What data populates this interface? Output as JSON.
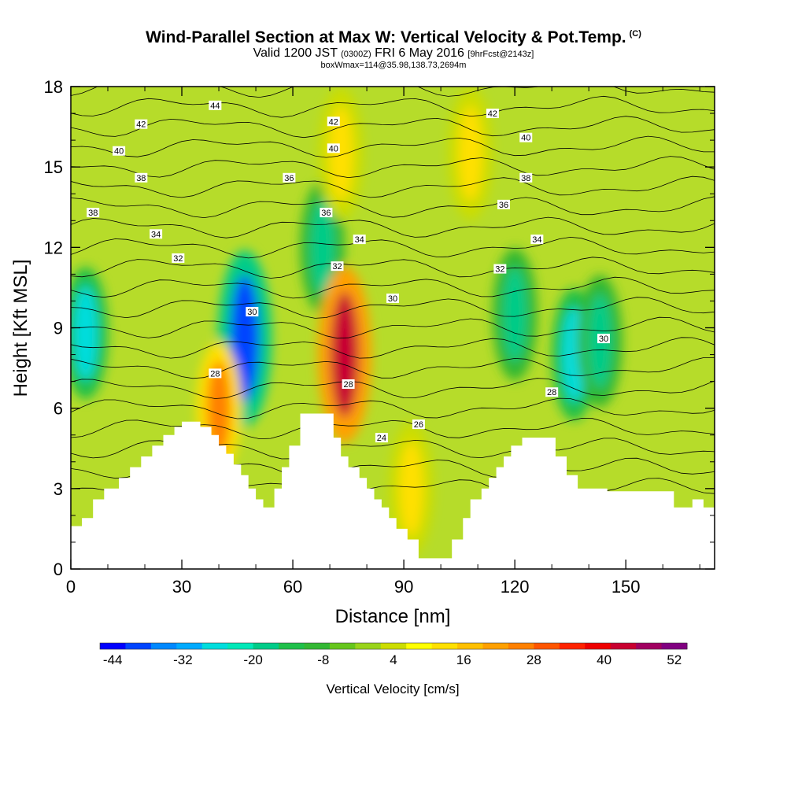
{
  "header": {
    "title": "Wind-Parallel Section at Max W: Vertical Velocity & Pot.Temp.",
    "title_mark": "(C)",
    "valid_prefix": "Valid 1200 JST",
    "valid_utc": "(0300Z)",
    "valid_date": "FRI 6 May 2016",
    "valid_fcst": "[9hrFcst@2143z]",
    "box_info": "boxWmax=114@35.98,138.73,2694m"
  },
  "chart_data": {
    "type": "heatmap",
    "title": "Wind-Parallel Section at Max W: Vertical Velocity & Pot.Temp.",
    "xlabel": "Distance [nm]",
    "ylabel": "Height [Kft MSL]",
    "xlim": [
      0,
      174
    ],
    "ylim": [
      0,
      18
    ],
    "xticks": [
      0,
      30,
      60,
      90,
      120,
      150
    ],
    "yticks": [
      0,
      3,
      6,
      9,
      12,
      15,
      18
    ],
    "colorbar": {
      "title": "Vertical Velocity [cm/s]",
      "labels": [
        -44,
        -32,
        -20,
        -8,
        4,
        16,
        28,
        40,
        52
      ],
      "colors": [
        "#0000ff",
        "#0044ff",
        "#0088ff",
        "#00aaff",
        "#00dddd",
        "#00e8b8",
        "#00cc88",
        "#1fc04a",
        "#33b833",
        "#66c61c",
        "#99d41a",
        "#ccdd00",
        "#ffff00",
        "#ffe000",
        "#ffc000",
        "#ffa000",
        "#ff8000",
        "#ff5500",
        "#ff2200",
        "#ee0000",
        "#c80030",
        "#a00060",
        "#800080"
      ]
    },
    "velocity_features": [
      {
        "x": 4,
        "y": 8.8,
        "value": -32
      },
      {
        "x": 47,
        "y": 8.6,
        "value": -44
      },
      {
        "x": 68,
        "y": 12.0,
        "value": -20
      },
      {
        "x": 74,
        "y": 8.0,
        "value": 52
      },
      {
        "x": 73,
        "y": 15.5,
        "value": 16
      },
      {
        "x": 40,
        "y": 6.0,
        "value": 28
      },
      {
        "x": 120,
        "y": 9.5,
        "value": -20
      },
      {
        "x": 136,
        "y": 8.0,
        "value": -32
      },
      {
        "x": 143,
        "y": 8.5,
        "value": -20
      },
      {
        "x": 92,
        "y": 3.0,
        "value": 16
      },
      {
        "x": 108,
        "y": 15.5,
        "value": 16
      }
    ],
    "theta_contour_labels": [
      {
        "text": "44",
        "x": 39,
        "y": 17.3
      },
      {
        "text": "42",
        "x": 19,
        "y": 16.6
      },
      {
        "text": "40",
        "x": 13,
        "y": 15.6
      },
      {
        "text": "38",
        "x": 19,
        "y": 14.6
      },
      {
        "text": "38",
        "x": 6,
        "y": 13.3
      },
      {
        "text": "34",
        "x": 23,
        "y": 12.5
      },
      {
        "text": "32",
        "x": 29,
        "y": 11.6
      },
      {
        "text": "42",
        "x": 71,
        "y": 16.7
      },
      {
        "text": "40",
        "x": 71,
        "y": 15.7
      },
      {
        "text": "36",
        "x": 59,
        "y": 14.6
      },
      {
        "text": "36",
        "x": 69,
        "y": 13.3
      },
      {
        "text": "34",
        "x": 78,
        "y": 12.3
      },
      {
        "text": "32",
        "x": 72,
        "y": 11.3
      },
      {
        "text": "30",
        "x": 49,
        "y": 9.6
      },
      {
        "text": "28",
        "x": 39,
        "y": 7.3
      },
      {
        "text": "28",
        "x": 75,
        "y": 6.9
      },
      {
        "text": "26",
        "x": 94,
        "y": 5.4
      },
      {
        "text": "24",
        "x": 84,
        "y": 4.9
      },
      {
        "text": "30",
        "x": 87,
        "y": 10.1
      },
      {
        "text": "42",
        "x": 114,
        "y": 17.0
      },
      {
        "text": "40",
        "x": 123,
        "y": 16.1
      },
      {
        "text": "38",
        "x": 123,
        "y": 14.6
      },
      {
        "text": "36",
        "x": 117,
        "y": 13.6
      },
      {
        "text": "34",
        "x": 126,
        "y": 12.3
      },
      {
        "text": "32",
        "x": 116,
        "y": 11.2
      },
      {
        "text": "28",
        "x": 130,
        "y": 6.6
      },
      {
        "text": "30",
        "x": 144,
        "y": 8.6
      }
    ],
    "terrain": [
      [
        0,
        1.6
      ],
      [
        3,
        1.6
      ],
      [
        3,
        1.9
      ],
      [
        6,
        1.9
      ],
      [
        6,
        2.6
      ],
      [
        9,
        2.6
      ],
      [
        9,
        3.0
      ],
      [
        13,
        3.0
      ],
      [
        13,
        3.4
      ],
      [
        16,
        3.4
      ],
      [
        16,
        3.8
      ],
      [
        19,
        3.8
      ],
      [
        19,
        4.2
      ],
      [
        22,
        4.2
      ],
      [
        22,
        4.6
      ],
      [
        25,
        4.6
      ],
      [
        25,
        5.0
      ],
      [
        28,
        5.0
      ],
      [
        28,
        5.3
      ],
      [
        30,
        5.3
      ],
      [
        30,
        5.5
      ],
      [
        35,
        5.5
      ],
      [
        35,
        5.3
      ],
      [
        38,
        5.3
      ],
      [
        38,
        5.0
      ],
      [
        40,
        5.0
      ],
      [
        40,
        4.6
      ],
      [
        42,
        4.6
      ],
      [
        42,
        4.3
      ],
      [
        44,
        4.3
      ],
      [
        44,
        3.9
      ],
      [
        46,
        3.9
      ],
      [
        46,
        3.5
      ],
      [
        48,
        3.5
      ],
      [
        48,
        3.0
      ],
      [
        50,
        3.0
      ],
      [
        50,
        2.6
      ],
      [
        52,
        2.6
      ],
      [
        52,
        2.3
      ],
      [
        55,
        2.3
      ],
      [
        55,
        3.0
      ],
      [
        57,
        3.0
      ],
      [
        57,
        3.8
      ],
      [
        59,
        3.8
      ],
      [
        59,
        4.6
      ],
      [
        62,
        4.6
      ],
      [
        62,
        5.8
      ],
      [
        71,
        5.8
      ],
      [
        71,
        4.9
      ],
      [
        73,
        4.9
      ],
      [
        73,
        4.2
      ],
      [
        75,
        4.2
      ],
      [
        75,
        3.8
      ],
      [
        78,
        3.8
      ],
      [
        78,
        3.4
      ],
      [
        80,
        3.4
      ],
      [
        80,
        3.0
      ],
      [
        82,
        3.0
      ],
      [
        82,
        2.6
      ],
      [
        84,
        2.6
      ],
      [
        84,
        2.3
      ],
      [
        86,
        2.3
      ],
      [
        86,
        1.9
      ],
      [
        88,
        1.9
      ],
      [
        88,
        1.5
      ],
      [
        91,
        1.5
      ],
      [
        91,
        1.1
      ],
      [
        94,
        1.1
      ],
      [
        94,
        0.4
      ],
      [
        103,
        0.4
      ],
      [
        103,
        1.1
      ],
      [
        106,
        1.1
      ],
      [
        106,
        1.9
      ],
      [
        108,
        1.9
      ],
      [
        108,
        2.6
      ],
      [
        111,
        2.6
      ],
      [
        111,
        3.0
      ],
      [
        113,
        3.0
      ],
      [
        113,
        3.4
      ],
      [
        115,
        3.4
      ],
      [
        115,
        3.8
      ],
      [
        117,
        3.8
      ],
      [
        117,
        4.2
      ],
      [
        119,
        4.2
      ],
      [
        119,
        4.6
      ],
      [
        122,
        4.6
      ],
      [
        122,
        4.9
      ],
      [
        131,
        4.9
      ],
      [
        131,
        4.2
      ],
      [
        134,
        4.2
      ],
      [
        134,
        3.5
      ],
      [
        137,
        3.5
      ],
      [
        137,
        3.0
      ],
      [
        145,
        3.0
      ],
      [
        145,
        2.9
      ],
      [
        163,
        2.9
      ],
      [
        163,
        2.3
      ],
      [
        168,
        2.3
      ],
      [
        168,
        2.6
      ],
      [
        171,
        2.6
      ],
      [
        171,
        2.3
      ],
      [
        174,
        2.3
      ]
    ]
  }
}
